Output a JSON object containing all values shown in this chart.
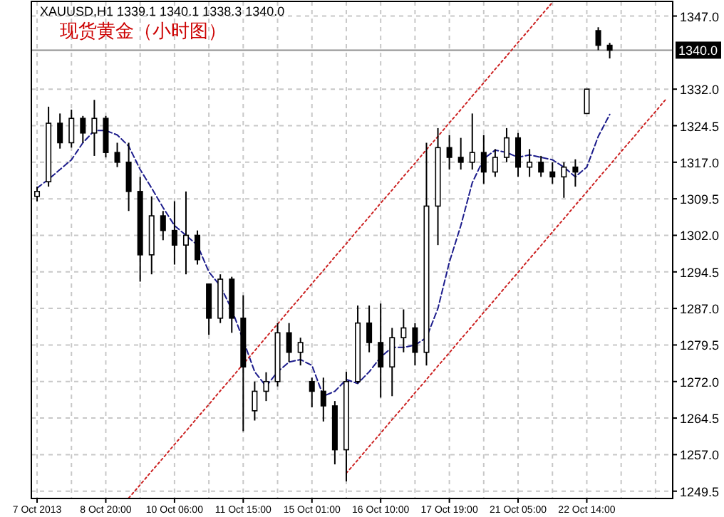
{
  "chart_data": {
    "type": "candlestick",
    "title": "现货黄金（小时图）",
    "annotations": [
      "XAUUSD,H1 1339.1 1340.1 1338.3 1340.0"
    ],
    "categories": [
      "7 Oct 2013",
      null,
      null,
      null,
      null,
      null,
      "8 Oct 20:00",
      null,
      null,
      null,
      null,
      null,
      "10 Oct 06:00",
      null,
      null,
      null,
      null,
      null,
      "11 Oct 15:00",
      null,
      null,
      null,
      null,
      null,
      "15 Oct 01:00",
      null,
      null,
      null,
      null,
      null,
      "16 Oct 10:00",
      null,
      null,
      null,
      null,
      null,
      "17 Oct 19:00",
      null,
      null,
      null,
      null,
      null,
      "21 Oct 05:00",
      null,
      null,
      null,
      null,
      null,
      "22 Oct 14:00",
      null,
      null,
      null,
      null,
      null,
      null,
      null
    ],
    "ohlc": [
      [
        1310,
        1312,
        1309,
        1311
      ],
      [
        1313,
        1328.4,
        1312,
        1325
      ],
      [
        1325,
        1327,
        1319.8,
        1321
      ],
      [
        1321,
        1327.8,
        1320,
        1326
      ],
      [
        1326,
        1326.5,
        1321,
        1323
      ],
      [
        1323,
        1329.8,
        1318.3,
        1326
      ],
      [
        1326,
        1326.5,
        1318,
        1319
      ],
      [
        1319,
        1321,
        1316,
        1317
      ],
      [
        1317,
        1321,
        1307,
        1311
      ],
      [
        1311,
        1314,
        1292.5,
        1298
      ],
      [
        1298,
        1310,
        1294,
        1306
      ],
      [
        1306,
        1307,
        1301,
        1303
      ],
      [
        1303,
        1309,
        1296,
        1300
      ],
      [
        1300,
        1311,
        1294,
        1302
      ],
      [
        1302,
        1303,
        1296,
        1297
      ],
      [
        1292,
        1292,
        1281.6,
        1285
      ],
      [
        1285,
        1294,
        1284,
        1293
      ],
      [
        1293,
        1293.5,
        1282,
        1285
      ],
      [
        1285,
        1289.7,
        1261.8,
        1275
      ],
      [
        1266,
        1272,
        1264,
        1270
      ],
      [
        1270,
        1273.9,
        1268,
        1272
      ],
      [
        1272,
        1284,
        1271,
        1282
      ],
      [
        1282,
        1284,
        1276,
        1278
      ],
      [
        1278,
        1281,
        1275.3,
        1280
      ],
      [
        1272,
        1272.8,
        1266.7,
        1270
      ],
      [
        1270,
        1272.8,
        1263.8,
        1267
      ],
      [
        1267,
        1268,
        1255,
        1258
      ],
      [
        1258,
        1274,
        1251.5,
        1272
      ],
      [
        1272,
        1287.6,
        1271.6,
        1284
      ],
      [
        1284,
        1287.6,
        1278,
        1280
      ],
      [
        1280,
        1288,
        1268.7,
        1275
      ],
      [
        1275,
        1283,
        1269,
        1281
      ],
      [
        1281,
        1286.8,
        1278,
        1283
      ],
      [
        1283,
        1284,
        1275.3,
        1278
      ],
      [
        1278,
        1321,
        1275.3,
        1308
      ],
      [
        1308,
        1324,
        1300,
        1320
      ],
      [
        1320,
        1322.6,
        1315.5,
        1318
      ],
      [
        1318,
        1322,
        1315.5,
        1317
      ],
      [
        1317,
        1327,
        1315.5,
        1319
      ],
      [
        1319,
        1322.6,
        1312.6,
        1315
      ],
      [
        1315,
        1319.7,
        1314,
        1318
      ],
      [
        1318,
        1324,
        1317,
        1322
      ],
      [
        1322,
        1323,
        1314,
        1316
      ],
      [
        1316,
        1319.7,
        1314,
        1317
      ],
      [
        1317,
        1318.3,
        1314,
        1315
      ],
      [
        1315,
        1317,
        1312.6,
        1314
      ],
      [
        1314,
        1317,
        1309.7,
        1316
      ],
      [
        1316,
        1317.6,
        1312,
        1315
      ],
      [
        1327,
        1332,
        1327,
        1332
      ],
      [
        1344,
        1344.7,
        1340,
        1341
      ],
      [
        1341,
        1341.5,
        1338.3,
        1340
      ],
      null,
      null,
      null,
      null,
      null
    ],
    "series": [
      {
        "type": "line",
        "color": "#1c1c8c",
        "line_style": "dashed",
        "values": [
          1311.7,
          1313.5,
          1315.5,
          1317.5,
          1321,
          1323.5,
          1323.5,
          1322.6,
          1320.3,
          1315.5,
          1311.7,
          1307.7,
          1304,
          1302,
          1300,
          1294.5,
          1291.6,
          1286.8,
          1280.5,
          1274,
          1271,
          1274,
          1276,
          1276.5,
          1275.3,
          1269,
          1270,
          1272.4,
          1271.6,
          1274,
          1277,
          1279,
          1279,
          1279.5,
          1281,
          1287,
          1296.5,
          1304,
          1312.8,
          1317.7,
          1319.5,
          1319,
          1318,
          1318.5,
          1318,
          1317.5,
          1316,
          1314,
          1316,
          1322.3,
          1326.8,
          null,
          null,
          null,
          null,
          null
        ]
      },
      {
        "type": "line",
        "color": "#cc2222",
        "line_style": "dotted",
        "values": [
          null,
          null,
          null,
          null,
          null,
          null,
          null,
          null,
          1248.1,
          1250.8,
          1253.6,
          1256.3,
          1259.1,
          1261.8,
          1264.6,
          1267.3,
          1270.1,
          1272.8,
          1275.6,
          1278.3,
          1281.1,
          1283.8,
          1286.6,
          1289.3,
          1292.1,
          1294.8,
          1297.6,
          1300.3,
          1303.1,
          1305.8,
          1308.6,
          1311.3,
          1314.1,
          1316.8,
          1319.6,
          1322.3,
          1325.1,
          1327.8,
          1330.6,
          1333.3,
          1336.1,
          1338.8,
          1341.6,
          1344.3,
          1347.1,
          1349.8,
          null,
          null,
          null,
          null,
          null,
          null,
          null,
          null,
          null,
          null
        ]
      },
      {
        "type": "line",
        "color": "#cc2222",
        "line_style": "dotted",
        "values": [
          null,
          null,
          null,
          null,
          null,
          null,
          null,
          null,
          null,
          null,
          null,
          null,
          null,
          null,
          null,
          null,
          null,
          null,
          null,
          null,
          null,
          null,
          null,
          null,
          null,
          null,
          null,
          1253.2,
          1255.9,
          1258.7,
          1261.4,
          1264.2,
          1266.9,
          1269.7,
          1272.4,
          1275.2,
          1277.9,
          1280.7,
          1283.4,
          1286.2,
          1288.9,
          1291.7,
          1294.4,
          1297.2,
          1299.9,
          1302.7,
          1305.4,
          1308.2,
          1310.9,
          1313.7,
          1316.4,
          1319.2,
          1321.9,
          1324.7,
          1327.4,
          1330.2
        ]
      }
    ],
    "ylim": [
      1248,
      1350
    ],
    "yticks": [
      {
        "value": 1347,
        "label": "1347.0"
      },
      {
        "value": 1332,
        "label": "1332.0"
      },
      {
        "value": 1324.5,
        "label": "1324.5"
      },
      {
        "value": 1317,
        "label": "1317.0"
      },
      {
        "value": 1309.5,
        "label": "1309.5"
      },
      {
        "value": 1302,
        "label": "1302.0"
      },
      {
        "value": 1294.5,
        "label": "1294.5"
      },
      {
        "value": 1287,
        "label": "1287.0"
      },
      {
        "value": 1279.5,
        "label": "1279.5"
      },
      {
        "value": 1272,
        "label": "1272.0"
      },
      {
        "value": 1264.5,
        "label": "1264.5"
      },
      {
        "value": 1257,
        "label": "1257.0"
      },
      {
        "value": 1249.5,
        "label": "1249.5"
      }
    ],
    "ref_lines": [
      {
        "axis": "y",
        "value": 1340,
        "label": "1340.0",
        "color": "#909090"
      }
    ],
    "grid": true
  }
}
